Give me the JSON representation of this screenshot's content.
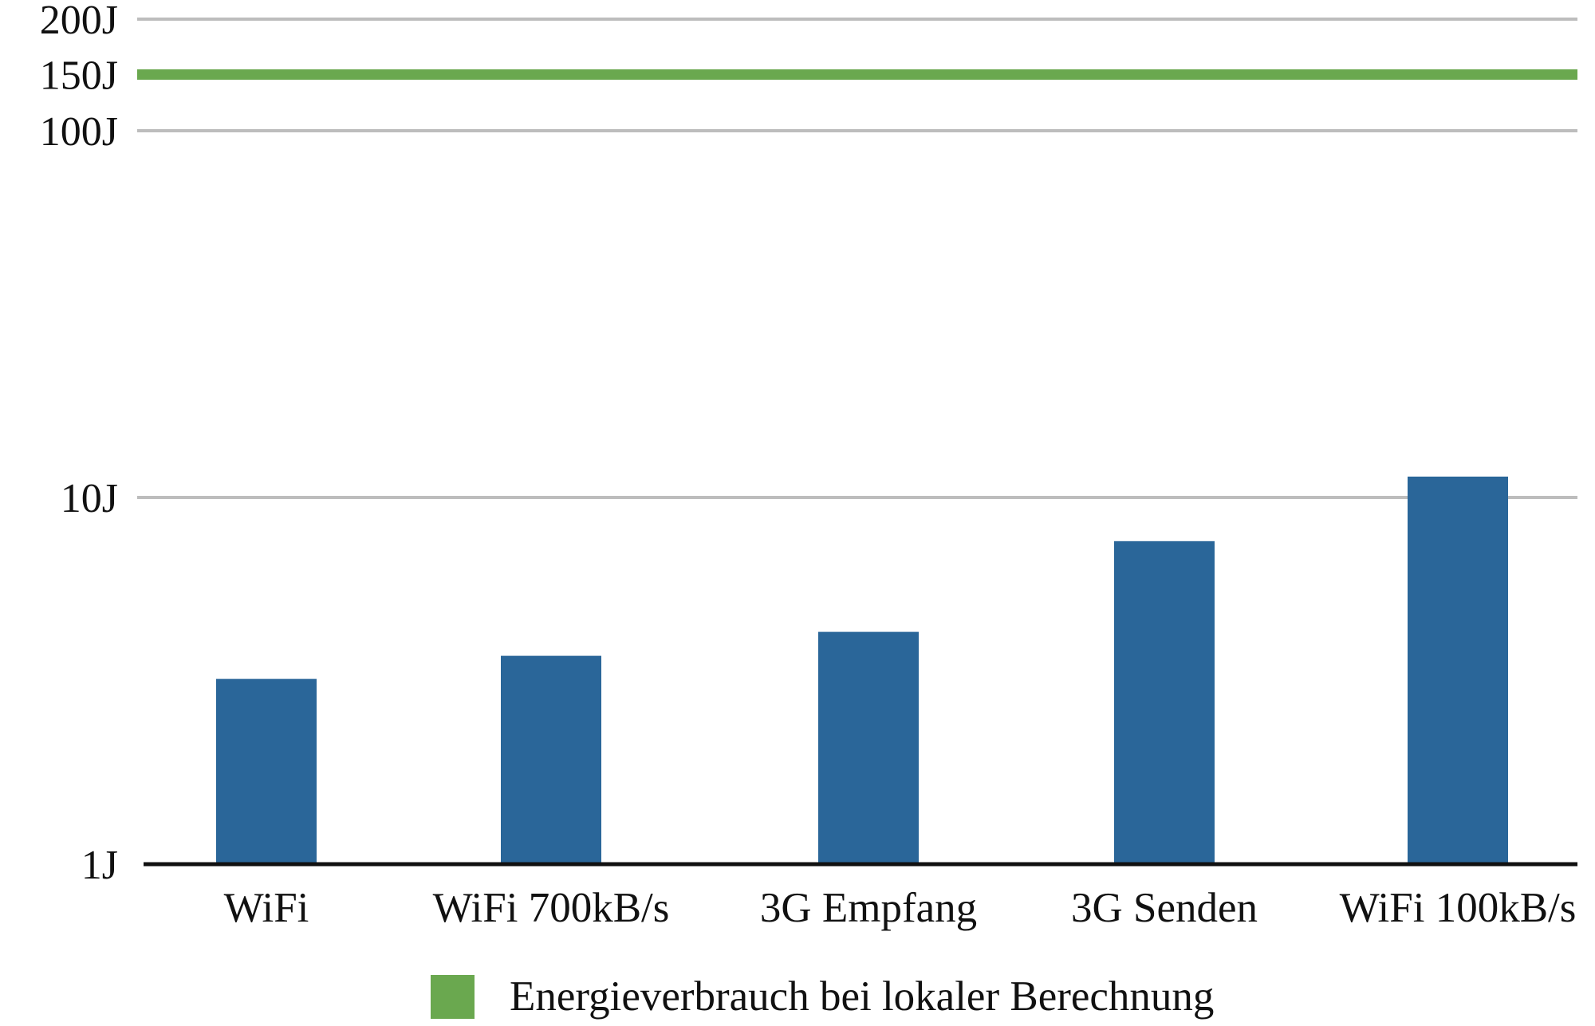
{
  "chart_data": {
    "type": "bar",
    "y_scale": "custom",
    "y_ticks": [
      {
        "value": 1,
        "label": "1J"
      },
      {
        "value": 10,
        "label": "10J"
      },
      {
        "value": 100,
        "label": "100J"
      },
      {
        "value": 150,
        "label": "150J"
      },
      {
        "value": 200,
        "label": "200J"
      }
    ],
    "ylim": [
      1,
      200
    ],
    "grid": true,
    "categories": [
      "WiFi",
      "WiFi 700kB/s",
      "3G Empfang",
      "3G Senden",
      "WiFi 100kB/s"
    ],
    "values": [
      3.2,
      3.7,
      4.3,
      7.6,
      11.4
    ],
    "bar_color": "#2a6699",
    "reference_line": {
      "value": 150,
      "label": "Energieverbrauch bei lokaler Berechnung",
      "color": "#6aa84f"
    },
    "legend": {
      "position": "bottom",
      "label": "Energieverbrauch bei lokaler Berechnung",
      "color": "#6aa84f"
    }
  }
}
